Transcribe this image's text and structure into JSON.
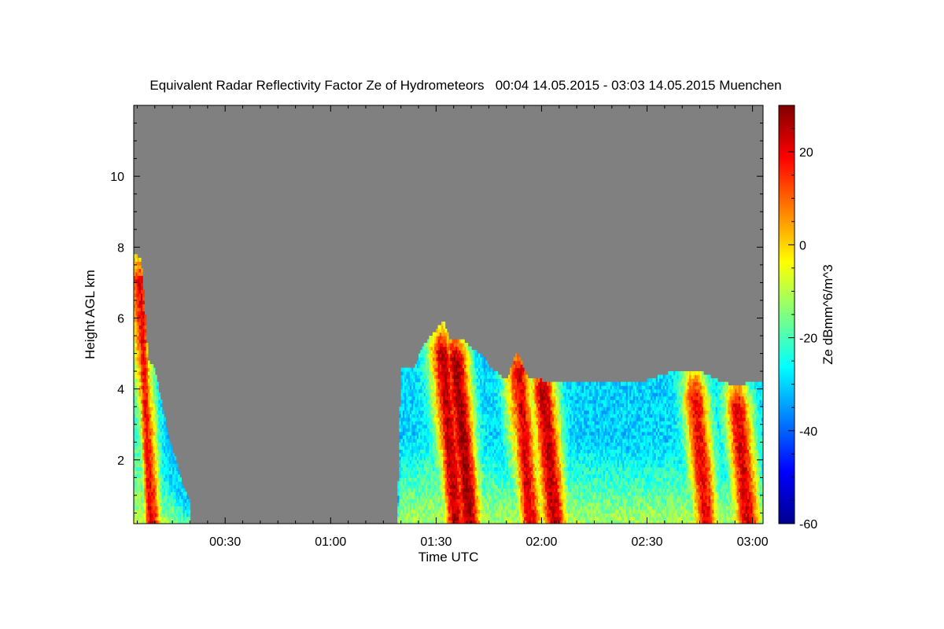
{
  "chart_data": {
    "type": "heatmap",
    "title": "Equivalent Radar Reflectivity Factor Ze of Hydrometeors   00:04 14.05.2015 - 03:03 14.05.2015 Muenchen",
    "xlabel": "Time UTC",
    "ylabel": "Height AGL km",
    "colorbar_label": "Ze dBmm^6/m^3",
    "xlim_minutes": [
      4,
      183
    ],
    "ylim_km": [
      0.2,
      12
    ],
    "x_ticks": [
      {
        "minutes": 30,
        "label": "00:30"
      },
      {
        "minutes": 60,
        "label": "01:00"
      },
      {
        "minutes": 90,
        "label": "01:30"
      },
      {
        "minutes": 120,
        "label": "02:00"
      },
      {
        "minutes": 150,
        "label": "02:30"
      },
      {
        "minutes": 180,
        "label": "03:00"
      }
    ],
    "y_ticks": [
      {
        "value": 2,
        "label": "2"
      },
      {
        "value": 4,
        "label": "4"
      },
      {
        "value": 6,
        "label": "6"
      },
      {
        "value": 8,
        "label": "8"
      },
      {
        "value": 10,
        "label": "10"
      }
    ],
    "colorbar_range": [
      -60,
      30
    ],
    "colorbar_ticks": [
      {
        "value": -60,
        "label": "-60"
      },
      {
        "value": -40,
        "label": "-40"
      },
      {
        "value": -20,
        "label": "-20"
      },
      {
        "value": 0,
        "label": "0"
      },
      {
        "value": 20,
        "label": "20"
      }
    ],
    "no_data_color": "#808080",
    "colormap": [
      "#00008f",
      "#0000ff",
      "#00ffff",
      "#ffff00",
      "#ff0000",
      "#800000"
    ],
    "echo_top_profile_km": [
      [
        4,
        7.8
      ],
      [
        6,
        7.6
      ],
      [
        7,
        6.5
      ],
      [
        8,
        4.8
      ],
      [
        10,
        4.5
      ],
      [
        12,
        3.5
      ],
      [
        14,
        2.5
      ],
      [
        16,
        2.0
      ],
      [
        18,
        1.2
      ],
      [
        20,
        0.8
      ],
      [
        79,
        0.3
      ],
      [
        80,
        4.5
      ],
      [
        84,
        4.6
      ],
      [
        86,
        5.1
      ],
      [
        88,
        5.4
      ],
      [
        90,
        5.6
      ],
      [
        92,
        5.9
      ],
      [
        94,
        5.3
      ],
      [
        96,
        5.3
      ],
      [
        98,
        5.3
      ],
      [
        100,
        5.1
      ],
      [
        103,
        4.9
      ],
      [
        106,
        4.5
      ],
      [
        110,
        4.2
      ],
      [
        113,
        5.0
      ],
      [
        116,
        4.3
      ],
      [
        120,
        4.2
      ],
      [
        124,
        4.2
      ],
      [
        130,
        4.2
      ],
      [
        140,
        4.2
      ],
      [
        150,
        4.2
      ],
      [
        156,
        4.4
      ],
      [
        160,
        4.5
      ],
      [
        166,
        4.4
      ],
      [
        170,
        4.2
      ],
      [
        176,
        4.0
      ],
      [
        180,
        4.2
      ],
      [
        183,
        4.2
      ]
    ],
    "convective_cores": [
      {
        "center_min": 5,
        "top_km": 7.0,
        "peak_dbz": 20
      },
      {
        "center_min": 91,
        "top_km": 5.0,
        "peak_dbz": 25
      },
      {
        "center_min": 95,
        "top_km": 4.8,
        "peak_dbz": 28
      },
      {
        "center_min": 113,
        "top_km": 4.5,
        "peak_dbz": 22
      },
      {
        "center_min": 120,
        "top_km": 4.0,
        "peak_dbz": 25
      },
      {
        "center_min": 163,
        "top_km": 3.8,
        "peak_dbz": 20
      },
      {
        "center_min": 175,
        "top_km": 3.5,
        "peak_dbz": 22
      }
    ]
  }
}
